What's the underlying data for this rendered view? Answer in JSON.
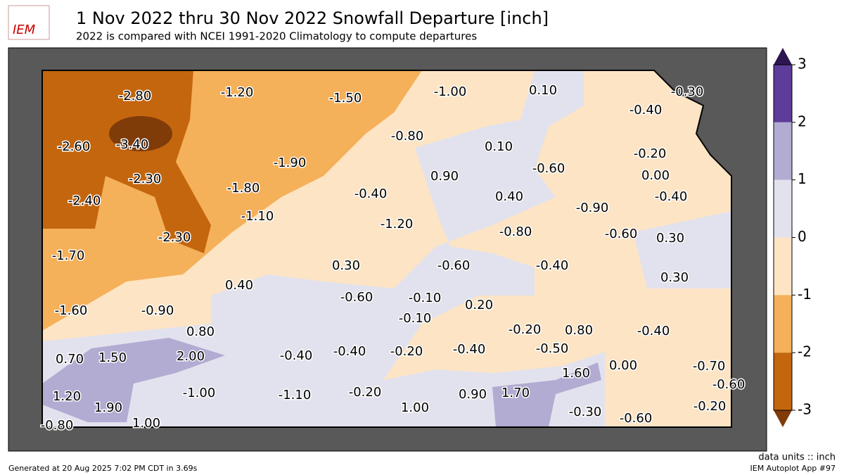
{
  "header": {
    "logo": "IEM",
    "title": "1 Nov 2022 thru 30 Nov 2022 Snowfall Departure [inch]",
    "subtitle": "2022 is compared with NCEI 1991-2020 Climatology to compute departures"
  },
  "map": {
    "labels": [
      "-2.80",
      "-1.20",
      "-1.50",
      "-1.00",
      "0.10",
      "-0.30",
      "-0.40",
      "-2.60",
      "-3.40",
      "-0.80",
      "0.10",
      "-0.20",
      "-1.90",
      "-0.60",
      "0.00",
      "-2.30",
      "-1.80",
      "0.90",
      "-0.40",
      "0.40",
      "-0.40",
      "-2.40",
      "-0.90",
      "-1.10",
      "-1.20",
      "-0.80",
      "-0.60",
      "0.30",
      "-2.30",
      "-1.70",
      "0.30",
      "-0.60",
      "-0.40",
      "0.30",
      "0.40",
      "-0.60",
      "-0.10",
      "-1.60",
      "-0.90",
      "0.20",
      "-0.10",
      "0.80",
      "-0.20",
      "0.80",
      "-0.40",
      "-0.50",
      "0.70",
      "1.50",
      "2.00",
      "-0.40",
      "-0.40",
      "-0.20",
      "-0.40",
      "1.60",
      "0.00",
      "-0.70",
      "-0.60",
      "1.20",
      "-1.00",
      "-1.10",
      "-0.20",
      "0.90",
      "1.70",
      "1.90",
      "1.00",
      "-0.30",
      "-0.60",
      "-0.20",
      "-0.80",
      "1.00"
    ]
  },
  "colorbar": {
    "ticks": [
      3,
      2,
      1,
      0,
      -1,
      -2,
      -3
    ],
    "colors": [
      "#5e3c99",
      "#b2abd2",
      "#e2e2ee",
      "#fde4c4",
      "#f5b05a",
      "#c4660e"
    ],
    "over": "#2d1650",
    "under": "#7f3b08"
  },
  "footer": {
    "units": "data units :: inch",
    "generated": "Generated at 20 Aug 2025 7:02 PM CDT in 3.69s",
    "app": "IEM Autoplot App #97"
  }
}
